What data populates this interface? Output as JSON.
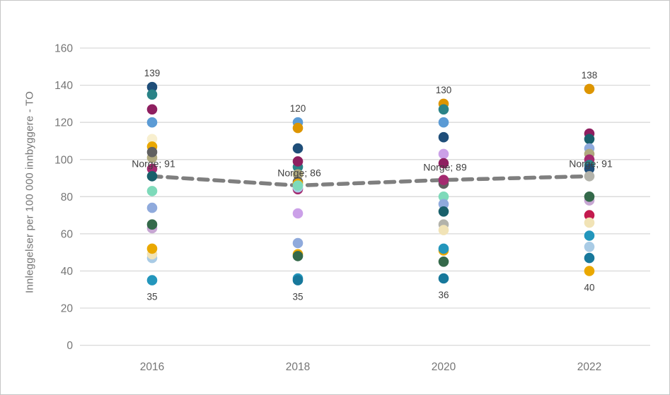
{
  "frame": {
    "background": "#ffffff",
    "border_color": "#c6c6c6"
  },
  "chart_data": {
    "type": "scatter",
    "title": "",
    "ylabel": "Innleggelser per 100 000 innbyggere - TO",
    "xlabel": "",
    "categories": [
      "2016",
      "2018",
      "2020",
      "2022"
    ],
    "y_ticks": [
      0,
      20,
      40,
      60,
      80,
      100,
      120,
      140,
      160
    ],
    "ylim": [
      0,
      160
    ],
    "grid": true,
    "legend_position": "none",
    "colors": {
      "grid": "#d9d9d9",
      "tick_text": "#757575",
      "annotation_text": "#404040",
      "norge_line": "#7f7f7f"
    },
    "palette": {
      "navy": "#1F4E79",
      "teal": "#2A8387",
      "darkmagenta": "#8E1F60",
      "lightblue": "#5B9BD5",
      "gold": "#EAA800",
      "amber": "#DD9500",
      "darkgray": "#606060",
      "khaki": "#AFA97E",
      "magenta": "#A42A70",
      "petrol": "#19606B",
      "mint": "#7EDABA",
      "periwinkle": "#8FAADC",
      "darkgreen": "#34694A",
      "thistle": "#C7A7D3",
      "cream": "#F1E3B6",
      "paleblue": "#A9CBE5",
      "cyan": "#2396BC",
      "darkcyan": "#17789B",
      "plum": "#CBA0E8",
      "silver": "#B3B3AB",
      "crimson": "#C31A4E",
      "paleyellow": "#F8EFCF"
    },
    "norge_line": {
      "name": "Norge",
      "style": "dashed",
      "values": [
        91,
        86,
        89,
        91
      ],
      "labels": [
        "Norge; 91",
        "Norge; 86",
        "Norge; 89",
        "Norge; 91"
      ]
    },
    "series": [
      {
        "year": "2016",
        "max_label": "139",
        "min_label": "35",
        "points": [
          {
            "v": 139,
            "c": "navy"
          },
          {
            "v": 135,
            "c": "teal"
          },
          {
            "v": 127,
            "c": "darkmagenta"
          },
          {
            "v": 120,
            "c": "lightblue"
          },
          {
            "v": 111,
            "c": "paleyellow"
          },
          {
            "v": 107,
            "c": "gold"
          },
          {
            "v": 101,
            "c": "khaki"
          },
          {
            "v": 104,
            "c": "darkgray"
          },
          {
            "v": 95,
            "c": "magenta"
          },
          {
            "v": 91,
            "c": "petrol"
          },
          {
            "v": 83,
            "c": "mint"
          },
          {
            "v": 74,
            "c": "periwinkle"
          },
          {
            "v": 63,
            "c": "thistle"
          },
          {
            "v": 65,
            "c": "darkgreen"
          },
          {
            "v": 47,
            "c": "paleblue"
          },
          {
            "v": 49,
            "c": "cream"
          },
          {
            "v": 52,
            "c": "gold"
          },
          {
            "v": 35,
            "c": "cyan"
          }
        ]
      },
      {
        "year": "2018",
        "max_label": "120",
        "min_label": "35",
        "points": [
          {
            "v": 120,
            "c": "lightblue"
          },
          {
            "v": 117,
            "c": "amber"
          },
          {
            "v": 106,
            "c": "navy"
          },
          {
            "v": 96,
            "c": "teal"
          },
          {
            "v": 99,
            "c": "darkmagenta"
          },
          {
            "v": 92,
            "c": "khaki"
          },
          {
            "v": 88,
            "c": "darkgray"
          },
          {
            "v": 87,
            "c": "gold"
          },
          {
            "v": 84,
            "c": "magenta"
          },
          {
            "v": 85,
            "c": "paleblue"
          },
          {
            "v": 86,
            "c": "mint"
          },
          {
            "v": 71,
            "c": "plum"
          },
          {
            "v": 55,
            "c": "periwinkle"
          },
          {
            "v": 49,
            "c": "gold"
          },
          {
            "v": 48,
            "c": "darkgreen"
          },
          {
            "v": 36,
            "c": "cyan"
          },
          {
            "v": 35,
            "c": "darkcyan"
          }
        ]
      },
      {
        "year": "2020",
        "max_label": "130",
        "min_label": "36",
        "points": [
          {
            "v": 130,
            "c": "amber"
          },
          {
            "v": 127,
            "c": "teal"
          },
          {
            "v": 120,
            "c": "lightblue"
          },
          {
            "v": 112,
            "c": "navy"
          },
          {
            "v": 103,
            "c": "plum"
          },
          {
            "v": 98,
            "c": "darkmagenta"
          },
          {
            "v": 87,
            "c": "darkgray"
          },
          {
            "v": 89,
            "c": "magenta"
          },
          {
            "v": 80,
            "c": "mint"
          },
          {
            "v": 76,
            "c": "periwinkle"
          },
          {
            "v": 72,
            "c": "petrol"
          },
          {
            "v": 65,
            "c": "silver"
          },
          {
            "v": 62,
            "c": "cream"
          },
          {
            "v": 51,
            "c": "gold"
          },
          {
            "v": 52,
            "c": "cyan"
          },
          {
            "v": 45,
            "c": "darkgreen"
          },
          {
            "v": 36,
            "c": "darkcyan"
          }
        ]
      },
      {
        "year": "2022",
        "max_label": "138",
        "min_label": "40",
        "points": [
          {
            "v": 138,
            "c": "amber"
          },
          {
            "v": 114,
            "c": "darkmagenta"
          },
          {
            "v": 111,
            "c": "petrol"
          },
          {
            "v": 106,
            "c": "periwinkle"
          },
          {
            "v": 103,
            "c": "khaki"
          },
          {
            "v": 100,
            "c": "magenta"
          },
          {
            "v": 97,
            "c": "teal"
          },
          {
            "v": 95,
            "c": "navy"
          },
          {
            "v": 91,
            "c": "silver"
          },
          {
            "v": 78,
            "c": "thistle"
          },
          {
            "v": 80,
            "c": "darkgreen"
          },
          {
            "v": 70,
            "c": "crimson"
          },
          {
            "v": 66,
            "c": "cream"
          },
          {
            "v": 59,
            "c": "cyan"
          },
          {
            "v": 53,
            "c": "paleblue"
          },
          {
            "v": 47,
            "c": "darkcyan"
          },
          {
            "v": 40,
            "c": "gold"
          }
        ]
      }
    ]
  }
}
